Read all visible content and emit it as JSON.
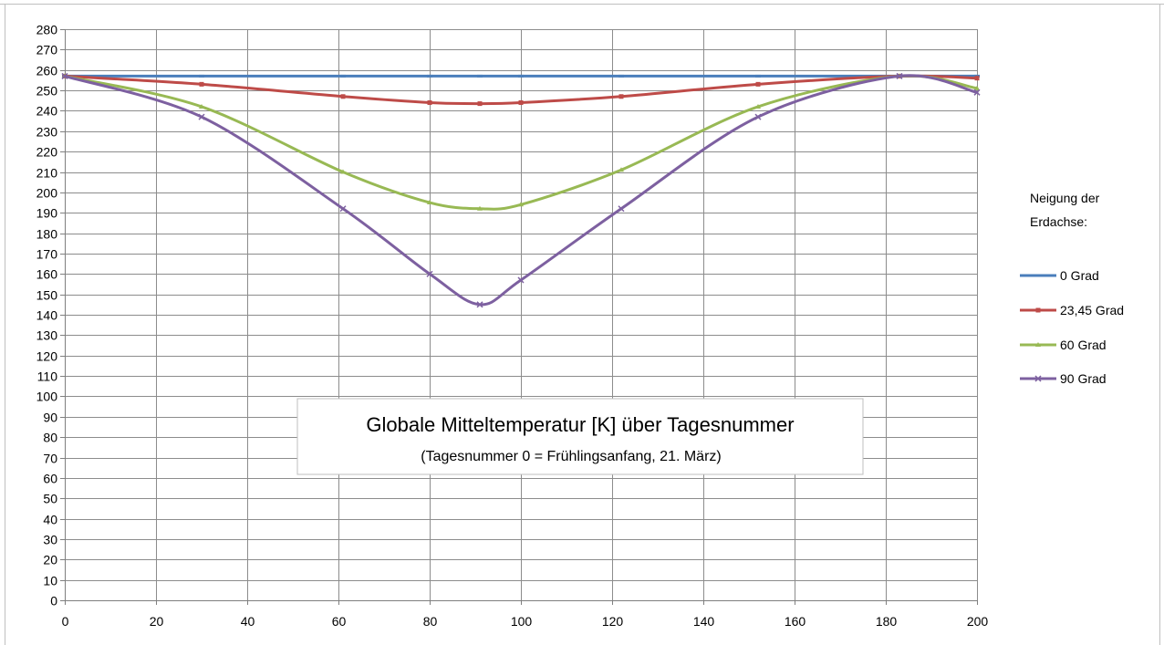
{
  "colors": {
    "grid": "#8c8c8c",
    "axis": "#7f7f7f",
    "background": "#ffffff",
    "title_border": "#bfbfbf"
  },
  "legend": {
    "title_line1": "Neigung der",
    "title_line2": "Erdachse:"
  },
  "title_box": {
    "title": "Globale Mitteltemperatur  [K] über Tagesnummer",
    "subtitle": "(Tagesnummer 0 = Frühlingsanfang, 21. März)"
  },
  "chart_data": {
    "type": "line",
    "title": "Globale Mitteltemperatur  [K] über Tagesnummer",
    "subtitle": "(Tagesnummer 0 = Frühlingsanfang, 21. März)",
    "xlabel": "",
    "ylabel": "",
    "xlim": [
      0,
      200
    ],
    "ylim": [
      0,
      280
    ],
    "xticks": [
      0,
      20,
      40,
      60,
      80,
      100,
      120,
      140,
      160,
      180,
      200
    ],
    "yticks": [
      0,
      10,
      20,
      30,
      40,
      50,
      60,
      70,
      80,
      90,
      100,
      110,
      120,
      130,
      140,
      150,
      160,
      170,
      180,
      190,
      200,
      210,
      220,
      230,
      240,
      250,
      260,
      270,
      280
    ],
    "grid": true,
    "smooth": true,
    "legend_position": "right",
    "legend_title": "Neigung der Erdachse:",
    "series": [
      {
        "name": "0 Grad",
        "color": "#4a7ebb",
        "marker": "dash",
        "x": [
          0,
          30,
          61,
          80,
          91,
          100,
          122,
          152,
          183,
          200
        ],
        "y": [
          257,
          257,
          257,
          257,
          257,
          257,
          257,
          257,
          257,
          257
        ]
      },
      {
        "name": "23,45 Grad",
        "color": "#be4b48",
        "marker": "square",
        "x": [
          0,
          30,
          61,
          80,
          91,
          100,
          122,
          152,
          183,
          200
        ],
        "y": [
          257,
          253,
          247,
          244,
          243.5,
          244,
          247,
          253,
          257,
          256
        ]
      },
      {
        "name": "60 Grad",
        "color": "#98b954",
        "marker": "triangle",
        "x": [
          0,
          30,
          61,
          80,
          91,
          100,
          122,
          152,
          183,
          200
        ],
        "y": [
          257,
          242,
          210,
          195,
          192,
          194,
          211,
          242,
          257,
          251
        ]
      },
      {
        "name": "90 Grad",
        "color": "#7d60a0",
        "marker": "x",
        "x": [
          0,
          30,
          61,
          80,
          91,
          100,
          122,
          152,
          183,
          200
        ],
        "y": [
          257,
          237,
          192,
          160,
          145,
          157,
          192,
          237,
          257,
          249
        ]
      }
    ]
  }
}
